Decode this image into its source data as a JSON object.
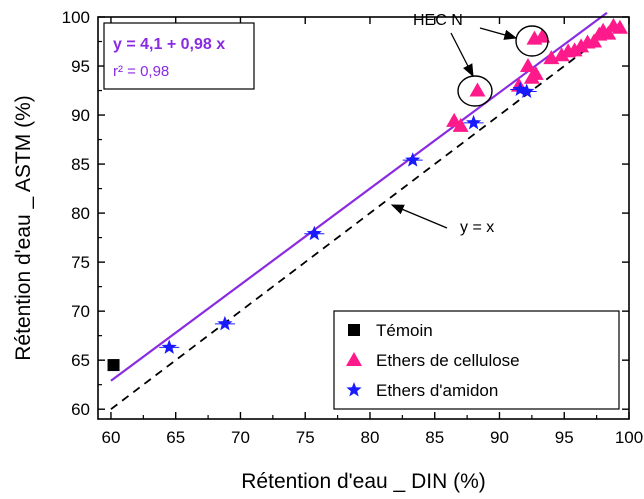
{
  "chart_data": {
    "type": "scatter",
    "xlabel": "Rétention d'eau _ DIN (%)",
    "ylabel": "Rétention d'eau _ ASTM (%)",
    "xlim": [
      59,
      100
    ],
    "ylim": [
      59,
      100
    ],
    "x_ticks": [
      60,
      65,
      70,
      75,
      80,
      85,
      90,
      95,
      100
    ],
    "y_ticks": [
      60,
      65,
      70,
      75,
      80,
      85,
      90,
      95,
      100
    ],
    "grid": false,
    "legend_position": "bottom-right",
    "series": [
      {
        "name": "Témoin",
        "marker": "square",
        "color": "#000000",
        "points": [
          {
            "x": 60.2,
            "y": 64.5,
            "err_y": 0.6
          }
        ]
      },
      {
        "name": "Ethers de cellulose",
        "marker": "triangle",
        "color": "#ff1a8c",
        "points": [
          {
            "x": 86.5,
            "y": 89.4
          },
          {
            "x": 87.0,
            "y": 88.9
          },
          {
            "x": 88.3,
            "y": 92.5
          },
          {
            "x": 91.5,
            "y": 93.0
          },
          {
            "x": 92.2,
            "y": 95.0
          },
          {
            "x": 92.5,
            "y": 93.8
          },
          {
            "x": 92.8,
            "y": 94.2
          },
          {
            "x": 92.7,
            "y": 97.8
          },
          {
            "x": 93.3,
            "y": 98.0
          },
          {
            "x": 94.0,
            "y": 95.8
          },
          {
            "x": 94.8,
            "y": 96.1
          },
          {
            "x": 95.3,
            "y": 96.5
          },
          {
            "x": 95.8,
            "y": 96.6
          },
          {
            "x": 96.3,
            "y": 97.0
          },
          {
            "x": 96.8,
            "y": 97.4
          },
          {
            "x": 97.3,
            "y": 97.5
          },
          {
            "x": 97.7,
            "y": 98.2
          },
          {
            "x": 98.0,
            "y": 98.6
          },
          {
            "x": 98.4,
            "y": 98.3
          },
          {
            "x": 98.8,
            "y": 99.1
          },
          {
            "x": 99.3,
            "y": 98.9
          }
        ]
      },
      {
        "name": "Ethers d'amidon",
        "marker": "star",
        "color": "#1a1aff",
        "points": [
          {
            "x": 64.5,
            "y": 66.3
          },
          {
            "x": 68.8,
            "y": 68.7
          },
          {
            "x": 75.7,
            "y": 77.9
          },
          {
            "x": 83.3,
            "y": 85.4
          },
          {
            "x": 88.0,
            "y": 89.2
          },
          {
            "x": 91.6,
            "y": 92.6
          },
          {
            "x": 92.1,
            "y": 92.4
          }
        ]
      }
    ],
    "lines": [
      {
        "label": "y = 4,1 + 0,98 x",
        "intercept": 4.1,
        "slope": 0.98,
        "style": "solid",
        "color": "#8a2be2",
        "x_range": [
          60,
          98.3
        ]
      },
      {
        "label": "y = x",
        "intercept": 0,
        "slope": 1,
        "style": "dashed",
        "color": "#000000",
        "x_range": [
          60,
          98.6
        ]
      }
    ],
    "annotations": {
      "equation": "y = 4,1 + 0,98 x",
      "r2": "r² = 0,98",
      "hec": "HEC N",
      "yx": "y = x"
    },
    "colors": {
      "fit_line": "#8a2be2",
      "equation_text": "#8a2be2"
    }
  }
}
